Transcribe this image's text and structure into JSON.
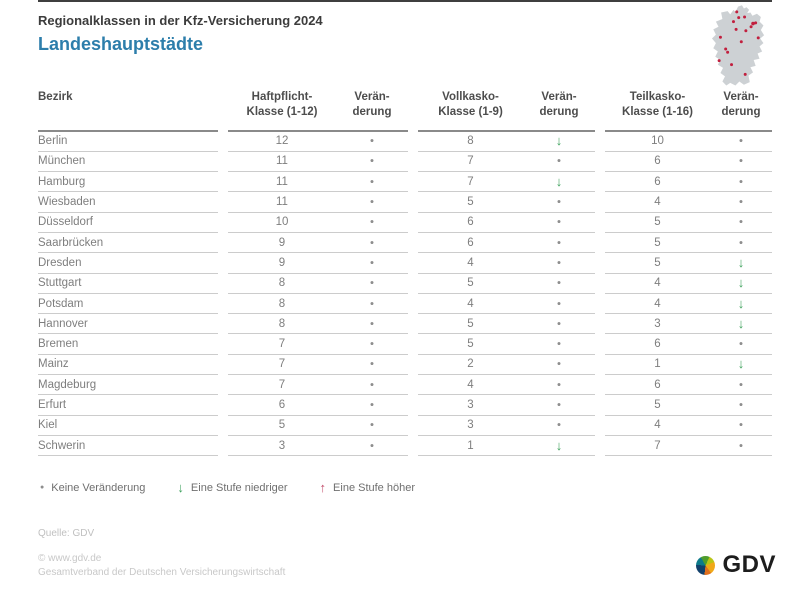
{
  "header": {
    "supertitle": "Regionalklassen in der Kfz-Versicherung 2024",
    "title": "Landeshauptstädte"
  },
  "chart_data": {
    "type": "table",
    "title": "Regionalklassen in der Kfz-Versicherung 2024",
    "subtitle": "Landeshauptstädte",
    "columns": [
      {
        "id": "bezirk",
        "line1": "Bezirk",
        "line2": ""
      },
      {
        "id": "haftpflicht",
        "line1": "Haftpflicht-",
        "line2": "Klasse (1-12)"
      },
      {
        "id": "haftpflicht_change",
        "line1": "Verän-",
        "line2": "derung"
      },
      {
        "id": "vollkasko",
        "line1": "Vollkasko-",
        "line2": "Klasse (1-9)"
      },
      {
        "id": "vollkasko_change",
        "line1": "Verän-",
        "line2": "derung"
      },
      {
        "id": "teilkasko",
        "line1": "Teilkasko-",
        "line2": "Klasse (1-16)"
      },
      {
        "id": "teilkasko_change",
        "line1": "Verän-",
        "line2": "derung"
      }
    ],
    "rows": [
      [
        "Berlin",
        12,
        "same",
        8,
        "down",
        10,
        "same"
      ],
      [
        "München",
        11,
        "same",
        7,
        "same",
        6,
        "same"
      ],
      [
        "Hamburg",
        11,
        "same",
        7,
        "down",
        6,
        "same"
      ],
      [
        "Wiesbaden",
        11,
        "same",
        5,
        "same",
        4,
        "same"
      ],
      [
        "Düsseldorf",
        10,
        "same",
        6,
        "same",
        5,
        "same"
      ],
      [
        "Saarbrücken",
        9,
        "same",
        6,
        "same",
        5,
        "same"
      ],
      [
        "Dresden",
        9,
        "same",
        4,
        "same",
        5,
        "down"
      ],
      [
        "Stuttgart",
        8,
        "same",
        5,
        "same",
        4,
        "down"
      ],
      [
        "Potsdam",
        8,
        "same",
        4,
        "same",
        4,
        "down"
      ],
      [
        "Hannover",
        8,
        "same",
        5,
        "same",
        3,
        "down"
      ],
      [
        "Bremen",
        7,
        "same",
        5,
        "same",
        6,
        "same"
      ],
      [
        "Mainz",
        7,
        "same",
        2,
        "same",
        1,
        "down"
      ],
      [
        "Magdeburg",
        7,
        "same",
        4,
        "same",
        6,
        "same"
      ],
      [
        "Erfurt",
        6,
        "same",
        3,
        "same",
        5,
        "same"
      ],
      [
        "Kiel",
        5,
        "same",
        3,
        "same",
        4,
        "same"
      ],
      [
        "Schwerin",
        3,
        "same",
        1,
        "down",
        7,
        "same"
      ]
    ]
  },
  "symbols": {
    "same": "●",
    "down": "↓",
    "up": "↑"
  },
  "legend": {
    "items": [
      {
        "code": "same",
        "label": "Keine Veränderung"
      },
      {
        "code": "down",
        "label": "Eine Stufe niedriger"
      },
      {
        "code": "up",
        "label": "Eine Stufe höher"
      }
    ]
  },
  "footer": {
    "source": "Quelle: GDV",
    "copyright": "© www.gdv.de",
    "organization": "Gesamtverband der Deutschen Versicherungswirtschaft",
    "logo_text": "GDV"
  },
  "colors": {
    "accent_blue": "#2d7eab",
    "change_down_green": "#3fa25e",
    "change_up_red": "#c24a68",
    "no_change_gray": "#8e8e8e",
    "map_gray": "#cdd1d4",
    "map_dot_red": "#c11f3e"
  }
}
